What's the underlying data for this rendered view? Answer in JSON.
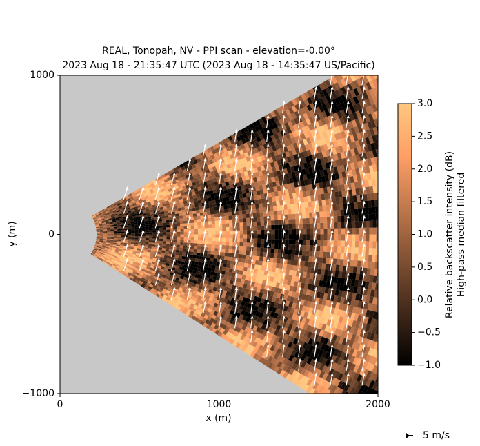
{
  "chart_data": {
    "type": "ppi",
    "title": "REAL, Tonopah, NV - PPI scan - elevation=-0.00°",
    "subtitle": "2023 Aug 18 - 21:35:47 UTC (2023 Aug 18 - 14:35:47 US/Pacific)",
    "xlabel": "x (m)",
    "ylabel": "y (m)",
    "xlim": [
      0,
      2000
    ],
    "xticks": [
      0,
      1000,
      2000
    ],
    "ylim": [
      -1000,
      1000
    ],
    "yticks": [
      {
        "value": -1000,
        "label": "−1000"
      },
      0,
      1000
    ],
    "background": "#c8c8c8",
    "colorbar": {
      "lim": [
        -1,
        3
      ],
      "ticks": [
        {
          "value": -1,
          "label": "−1.0"
        },
        {
          "value": -0.5,
          "label": "−0.5"
        },
        {
          "value": 0,
          "label": "0.0"
        },
        {
          "value": 0.5,
          "label": "0.5"
        },
        {
          "value": 1,
          "label": "1.0"
        },
        {
          "value": 1.5,
          "label": "1.5"
        },
        {
          "value": 2,
          "label": "2.0"
        },
        {
          "value": 2.5,
          "label": "2.5"
        },
        {
          "value": 3,
          "label": "3.0"
        }
      ],
      "label": [
        "Relative backscatter intensity (dB)",
        "High-pass median filtered"
      ]
    },
    "quiver_key": "5 m/s"
  }
}
